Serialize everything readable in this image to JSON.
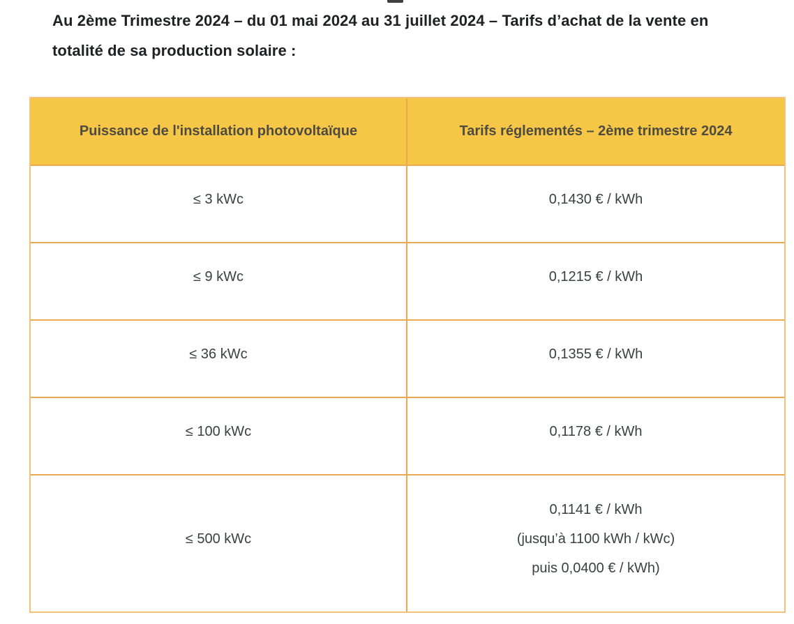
{
  "page": {
    "title": "Au 2ème Trimestre 2024 – du 01 mai 2024 au 31 juillet 2024 – Tarifs d’achat de la vente en totalité de sa production solaire :"
  },
  "table": {
    "headers": [
      "Puissance de l'installation photovoltaïque",
      "Tarifs réglementés – 2ème trimestre 2024"
    ],
    "rows": [
      {
        "power": "≤ 3 kWc",
        "lines": [
          "0,1430 € / kWh"
        ]
      },
      {
        "power": "≤ 9 kWc",
        "lines": [
          "0,1215 € / kWh"
        ]
      },
      {
        "power": "≤ 36 kWc",
        "lines": [
          "0,1355 € / kWh"
        ]
      },
      {
        "power": "≤ 100 kWc",
        "lines": [
          "0,1178 € / kWh"
        ]
      },
      {
        "power": "≤ 500 kWc",
        "lines": [
          "0,1141 € / kWh",
          "(jusqu’à 1100 kWh / kWc)",
          "puis 0,0400 € / kWh)"
        ]
      }
    ]
  },
  "colors": {
    "header_bg": "#F6C746",
    "header_text": "#4D4B42",
    "cell_text": "#3C4043",
    "border_inner": "#E9A94F",
    "border_outer": "#F1C277",
    "title_text": "#202124"
  }
}
